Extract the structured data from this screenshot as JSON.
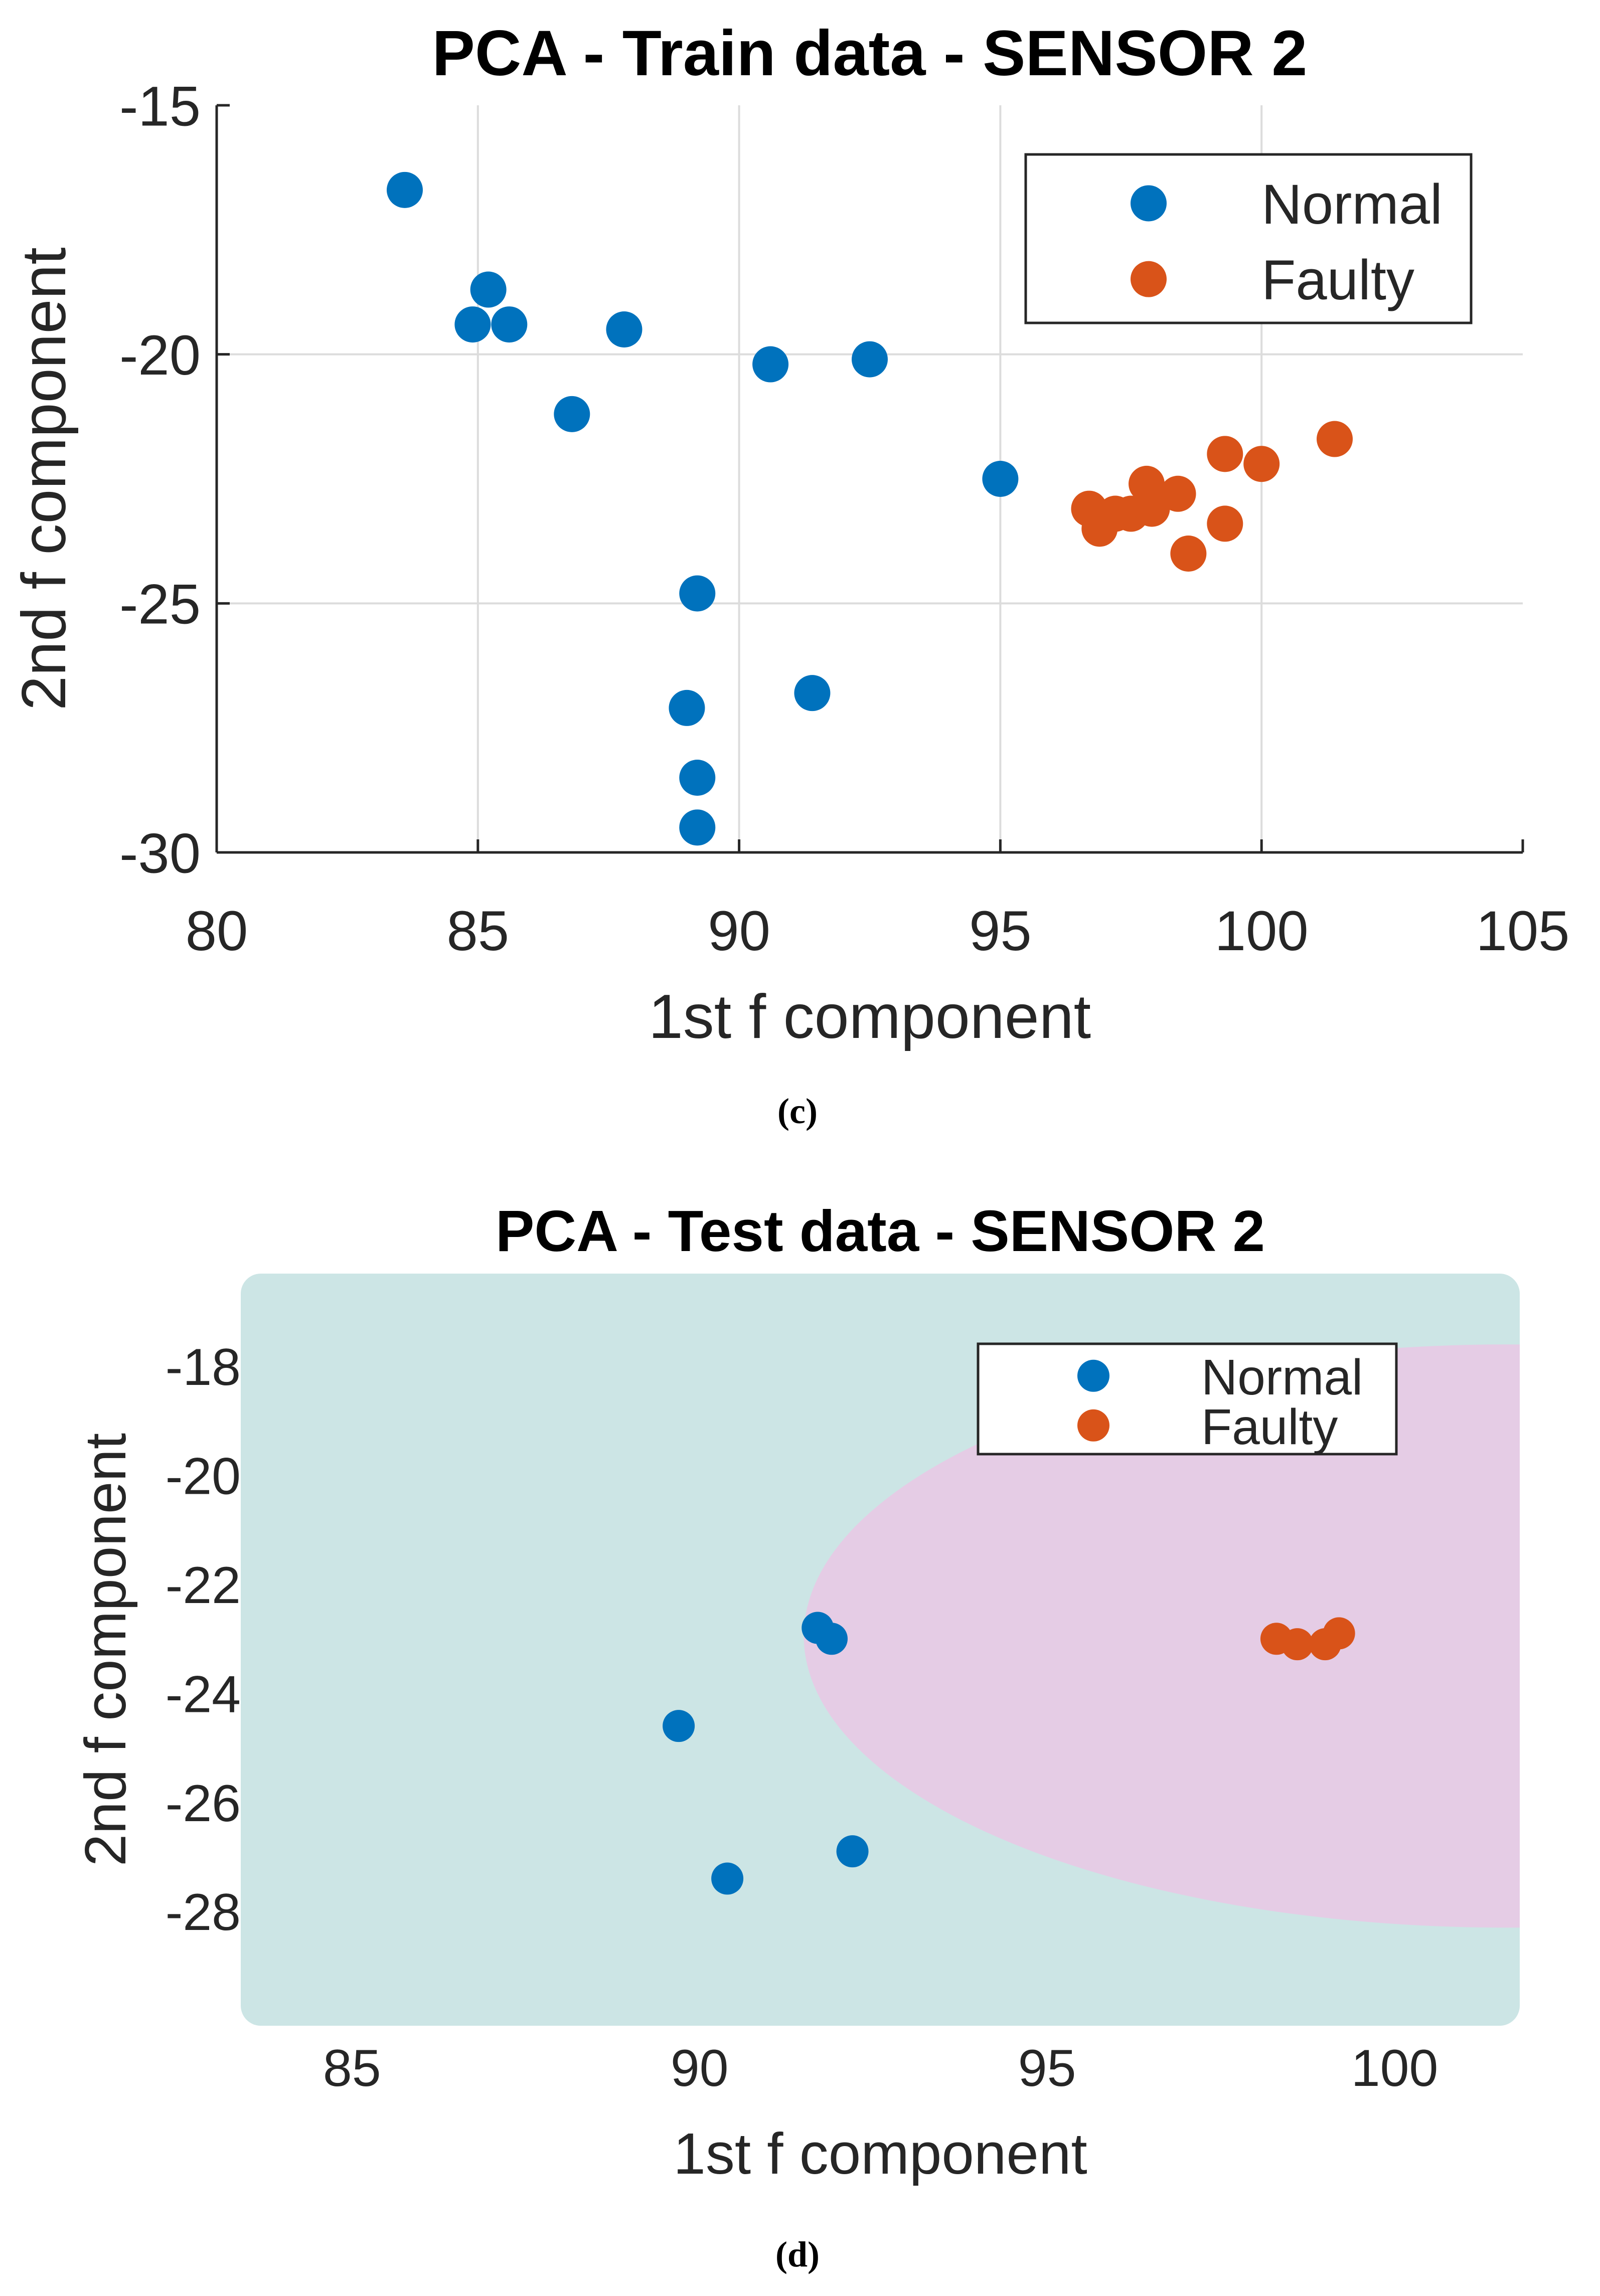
{
  "chart_data": [
    {
      "type": "scatter",
      "title": "PCA - Train data - SENSOR 2",
      "xlabel": "1st f component",
      "ylabel": "2nd f component",
      "xlim": [
        80,
        105
      ],
      "ylim": [
        -30,
        -15
      ],
      "xticks": [
        80,
        85,
        90,
        95,
        100,
        105
      ],
      "yticks": [
        -15,
        -20,
        -25,
        -30
      ],
      "grid": true,
      "legend_position": "top-right",
      "caption": "(c)",
      "series": [
        {
          "name": "Normal",
          "color": "#0072BD",
          "points": [
            [
              83.6,
              -16.7
            ],
            [
              85.2,
              -18.7
            ],
            [
              84.9,
              -19.4
            ],
            [
              85.6,
              -19.4
            ],
            [
              87.8,
              -19.5
            ],
            [
              90.6,
              -20.2
            ],
            [
              92.5,
              -20.1
            ],
            [
              86.8,
              -21.2
            ],
            [
              95.0,
              -22.5
            ],
            [
              89.2,
              -24.8
            ],
            [
              91.4,
              -26.8
            ],
            [
              89.0,
              -27.1
            ],
            [
              89.2,
              -28.5
            ],
            [
              89.2,
              -29.5
            ]
          ]
        },
        {
          "name": "Faulty",
          "color": "#D95319",
          "points": [
            [
              101.4,
              -21.7
            ],
            [
              99.3,
              -22.0
            ],
            [
              100.0,
              -22.2
            ],
            [
              97.8,
              -22.6
            ],
            [
              98.4,
              -22.8
            ],
            [
              96.7,
              -23.1
            ],
            [
              97.2,
              -23.2
            ],
            [
              97.5,
              -23.2
            ],
            [
              97.9,
              -23.1
            ],
            [
              96.9,
              -23.5
            ],
            [
              99.3,
              -23.4
            ],
            [
              98.6,
              -24.0
            ]
          ]
        }
      ]
    },
    {
      "type": "scatter",
      "title": "PCA - Test data - SENSOR 2",
      "xlabel": "1st f component",
      "ylabel": "2nd f component",
      "xlim": [
        83.4,
        101.8
      ],
      "ylim": [
        -30.1,
        -16.3
      ],
      "xticks": [
        85,
        90,
        95,
        100
      ],
      "yticks": [
        -18,
        -20,
        -22,
        -24,
        -26,
        -28
      ],
      "grid": false,
      "legend_position": "top-right",
      "caption": "(d)",
      "background_color": "#CCE5E5",
      "region_color": "#E5CCE5",
      "series": [
        {
          "name": "Normal",
          "color": "#0072BD",
          "points": [
            [
              91.7,
              -22.8
            ],
            [
              91.9,
              -23.0
            ],
            [
              89.7,
              -24.6
            ],
            [
              92.2,
              -26.9
            ],
            [
              90.4,
              -27.4
            ]
          ]
        },
        {
          "name": "Faulty",
          "color": "#D95319",
          "points": [
            [
              98.3,
              -23.0
            ],
            [
              98.6,
              -23.1
            ],
            [
              99.0,
              -23.1
            ],
            [
              99.2,
              -22.9
            ]
          ]
        }
      ]
    }
  ]
}
